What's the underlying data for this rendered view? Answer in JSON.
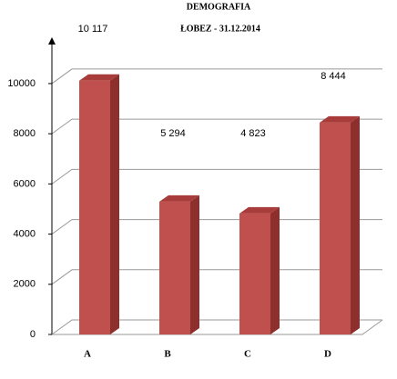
{
  "chart_data": {
    "type": "bar3d",
    "title": "DEMOGRAFIA",
    "subtitle": "ŁOBEZ - 31.12.2014",
    "categories": [
      "A",
      "B",
      "C",
      "D"
    ],
    "values": [
      10117,
      5294,
      4823,
      8444
    ],
    "value_labels": [
      "10 117",
      "5 294",
      "4 823",
      "8 444"
    ],
    "color": "#c0504d",
    "ylim": [
      0,
      11700
    ],
    "yticks": [
      0,
      2000,
      4000,
      6000,
      8000,
      10000
    ],
    "grid": true
  }
}
